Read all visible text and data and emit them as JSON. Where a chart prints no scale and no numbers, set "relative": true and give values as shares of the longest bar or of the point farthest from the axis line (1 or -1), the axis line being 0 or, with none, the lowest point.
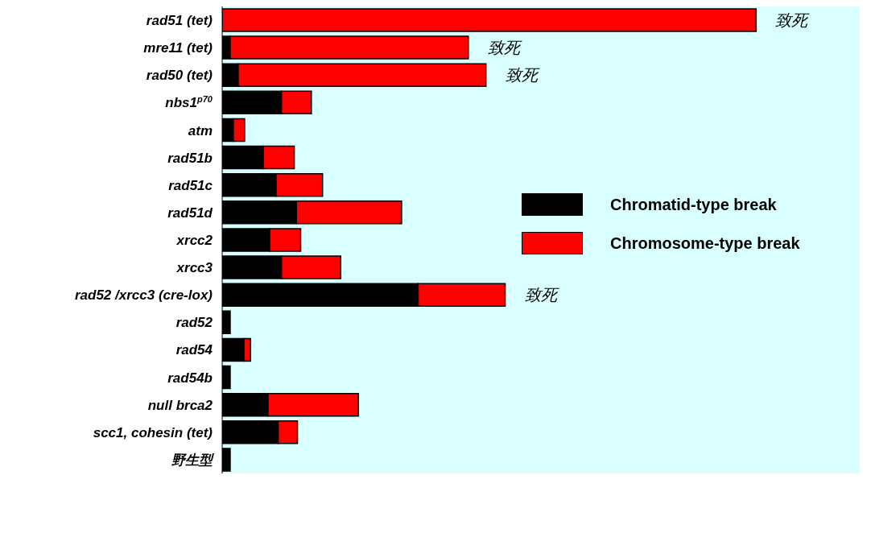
{
  "chart_data": {
    "type": "bar",
    "orientation": "horizontal",
    "stacked": true,
    "relative": true,
    "legend": "right",
    "categories": [
      "rad51 (tet)",
      "mre11 (tet)",
      "rad50 (tet)",
      "nbs1$^{p70}$",
      "atm",
      "rad51b",
      "rad51c",
      "rad51d",
      "xrcc2",
      "xrcc3",
      "rad52 /xrcc3 (cre-lox)",
      "rad52",
      "rad54",
      "rad54b",
      "null brca2",
      "scc1, cohesin (tet)",
      "野生型"
    ],
    "series": [
      {
        "name": "Chromatid-type break",
        "color": "#000000",
        "values": [
          0,
          0.015,
          0.03,
          0.111,
          0.021,
          0.077,
          0.101,
          0.139,
          0.089,
          0.111,
          0.367,
          0.015,
          0.041,
          0.015,
          0.086,
          0.105,
          0.015
        ]
      },
      {
        "name": "Chromosome-type break",
        "color": "#ff0000",
        "values": [
          1,
          0.446,
          0.464,
          0.056,
          0.021,
          0.058,
          0.087,
          0.197,
          0.058,
          0.111,
          0.163,
          0,
          0.012,
          0,
          0.169,
          0.036,
          0
        ]
      }
    ],
    "annotations": [
      {
        "text": "致死",
        "x": 1,
        "y": "rad51 (tet)"
      },
      {
        "text": "致死",
        "x": 0.461,
        "y": "mre11 (tet)"
      },
      {
        "text": "致死",
        "x": 0.494,
        "y": "rad50 (tet)"
      },
      {
        "text": "致死",
        "x": 0.53,
        "y": "rad52 /xrcc3 (cre-lox)"
      }
    ]
  }
}
